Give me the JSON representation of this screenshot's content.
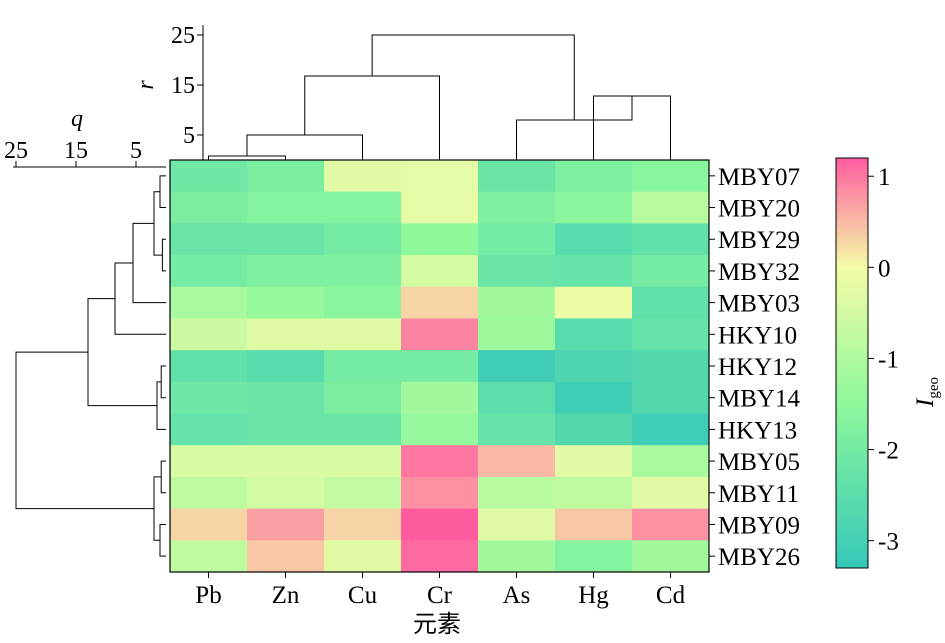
{
  "chart_data": {
    "type": "heatmap",
    "title": "",
    "xlabel": "元素",
    "columns": [
      "Pb",
      "Zn",
      "Cu",
      "Cr",
      "As",
      "Hg",
      "Cd"
    ],
    "rows": [
      "MBY07",
      "MBY20",
      "MBY29",
      "MBY32",
      "MBY03",
      "HKY10",
      "HKY12",
      "MBY14",
      "HKY13",
      "MBY05",
      "MBY11",
      "MBY09",
      "MBY26"
    ],
    "values": [
      [
        -2.1,
        -1.9,
        -0.3,
        -0.2,
        -2.2,
        -1.8,
        -1.6
      ],
      [
        -1.9,
        -1.7,
        -1.7,
        -0.2,
        -1.8,
        -1.6,
        -0.9
      ],
      [
        -2.2,
        -2.2,
        -2.0,
        -1.5,
        -2.0,
        -2.6,
        -2.4
      ],
      [
        -2.0,
        -1.8,
        -1.8,
        -0.5,
        -2.2,
        -2.3,
        -2.0
      ],
      [
        -1.1,
        -1.4,
        -1.6,
        0.3,
        -1.2,
        -0.1,
        -2.4
      ],
      [
        -0.6,
        -0.3,
        -0.3,
        0.9,
        -1.3,
        -2.6,
        -2.3
      ],
      [
        -2.4,
        -2.6,
        -2.0,
        -2.0,
        -3.1,
        -2.8,
        -2.7
      ],
      [
        -2.1,
        -2.2,
        -1.9,
        -1.2,
        -2.5,
        -3.1,
        -2.7
      ],
      [
        -2.3,
        -2.2,
        -2.2,
        -1.4,
        -2.3,
        -2.7,
        -3.1
      ],
      [
        -0.4,
        -0.4,
        -0.4,
        1.0,
        0.5,
        -0.3,
        -1.1
      ],
      [
        -0.8,
        -0.5,
        -0.7,
        0.8,
        -0.9,
        -0.8,
        -0.3
      ],
      [
        0.3,
        0.7,
        0.3,
        1.2,
        -0.3,
        0.4,
        0.8
      ],
      [
        -0.8,
        0.4,
        -0.3,
        1.1,
        -1.2,
        -1.7,
        -1.2
      ]
    ],
    "colorbar": {
      "label": "I",
      "label_sub": "geo",
      "range": [
        -3.3,
        1.2
      ],
      "ticks": [
        1,
        0,
        -1,
        -2,
        -3
      ],
      "tick_labels": [
        "1",
        "0",
        "-1",
        "-2",
        "-3"
      ],
      "stops": [
        {
          "v": 1.2,
          "color": "#ff5ca0"
        },
        {
          "v": 0.0,
          "color": "#f4fca6"
        },
        {
          "v": -1.5,
          "color": "#8ef89b"
        },
        {
          "v": -3.3,
          "color": "#35c8b8"
        }
      ]
    },
    "col_dendrogram": {
      "axis_label": "r",
      "ticks": [
        25,
        15,
        5
      ],
      "range": [
        0,
        27
      ],
      "links": [
        {
          "a": "Pb",
          "b": "Zn",
          "h": 0.8
        },
        {
          "a": "Pb|Zn",
          "b": "Cu",
          "h": 5.0
        },
        {
          "a": "Pb|Zn|Cu",
          "b": "Cr",
          "h": 16.8
        },
        {
          "a": "Hg",
          "b": "Cd",
          "h": 12.8
        },
        {
          "a": "As",
          "b": "Hg|Cd",
          "h": 8.0
        },
        {
          "a": "Pb|Zn|Cu|Cr",
          "b": "As|Hg|Cd",
          "h": 25.0
        }
      ]
    },
    "row_dendrogram": {
      "axis_label": "q",
      "ticks": [
        25,
        15,
        5
      ],
      "range": [
        0,
        26
      ],
      "links": [
        {
          "a": "MBY07",
          "b": "MBY20",
          "h": 1.0
        },
        {
          "a": "MBY29",
          "b": "MBY32",
          "h": 0.6
        },
        {
          "a": "MBY07|MBY20",
          "b": "MBY29|MBY32",
          "h": 2.0
        },
        {
          "a": "MBY07|MBY20|MBY29|MBY32",
          "b": "MBY03",
          "h": 5.5
        },
        {
          "a": "MBY07|MBY20|MBY29|MBY32|MBY03",
          "b": "HKY10",
          "h": 8.5
        },
        {
          "a": "HKY12",
          "b": "MBY14",
          "h": 0.8
        },
        {
          "a": "HKY12|MBY14",
          "b": "HKY13",
          "h": 1.5
        },
        {
          "a": "MBY07|MBY20|MBY29|MBY32|MBY03|HKY10",
          "b": "HKY12|MBY14|HKY13",
          "h": 13.0
        },
        {
          "a": "MBY05",
          "b": "MBY11",
          "h": 0.8
        },
        {
          "a": "MBY09",
          "b": "MBY26",
          "h": 1.0
        },
        {
          "a": "MBY05|MBY11",
          "b": "MBY09|MBY26",
          "h": 2.0
        },
        {
          "a": "MBY07|MBY20|MBY29|MBY32|MBY03|HKY10|HKY12|MBY14|HKY13",
          "b": "MBY05|MBY11|MBY09|MBY26",
          "h": 25.0
        }
      ]
    }
  }
}
